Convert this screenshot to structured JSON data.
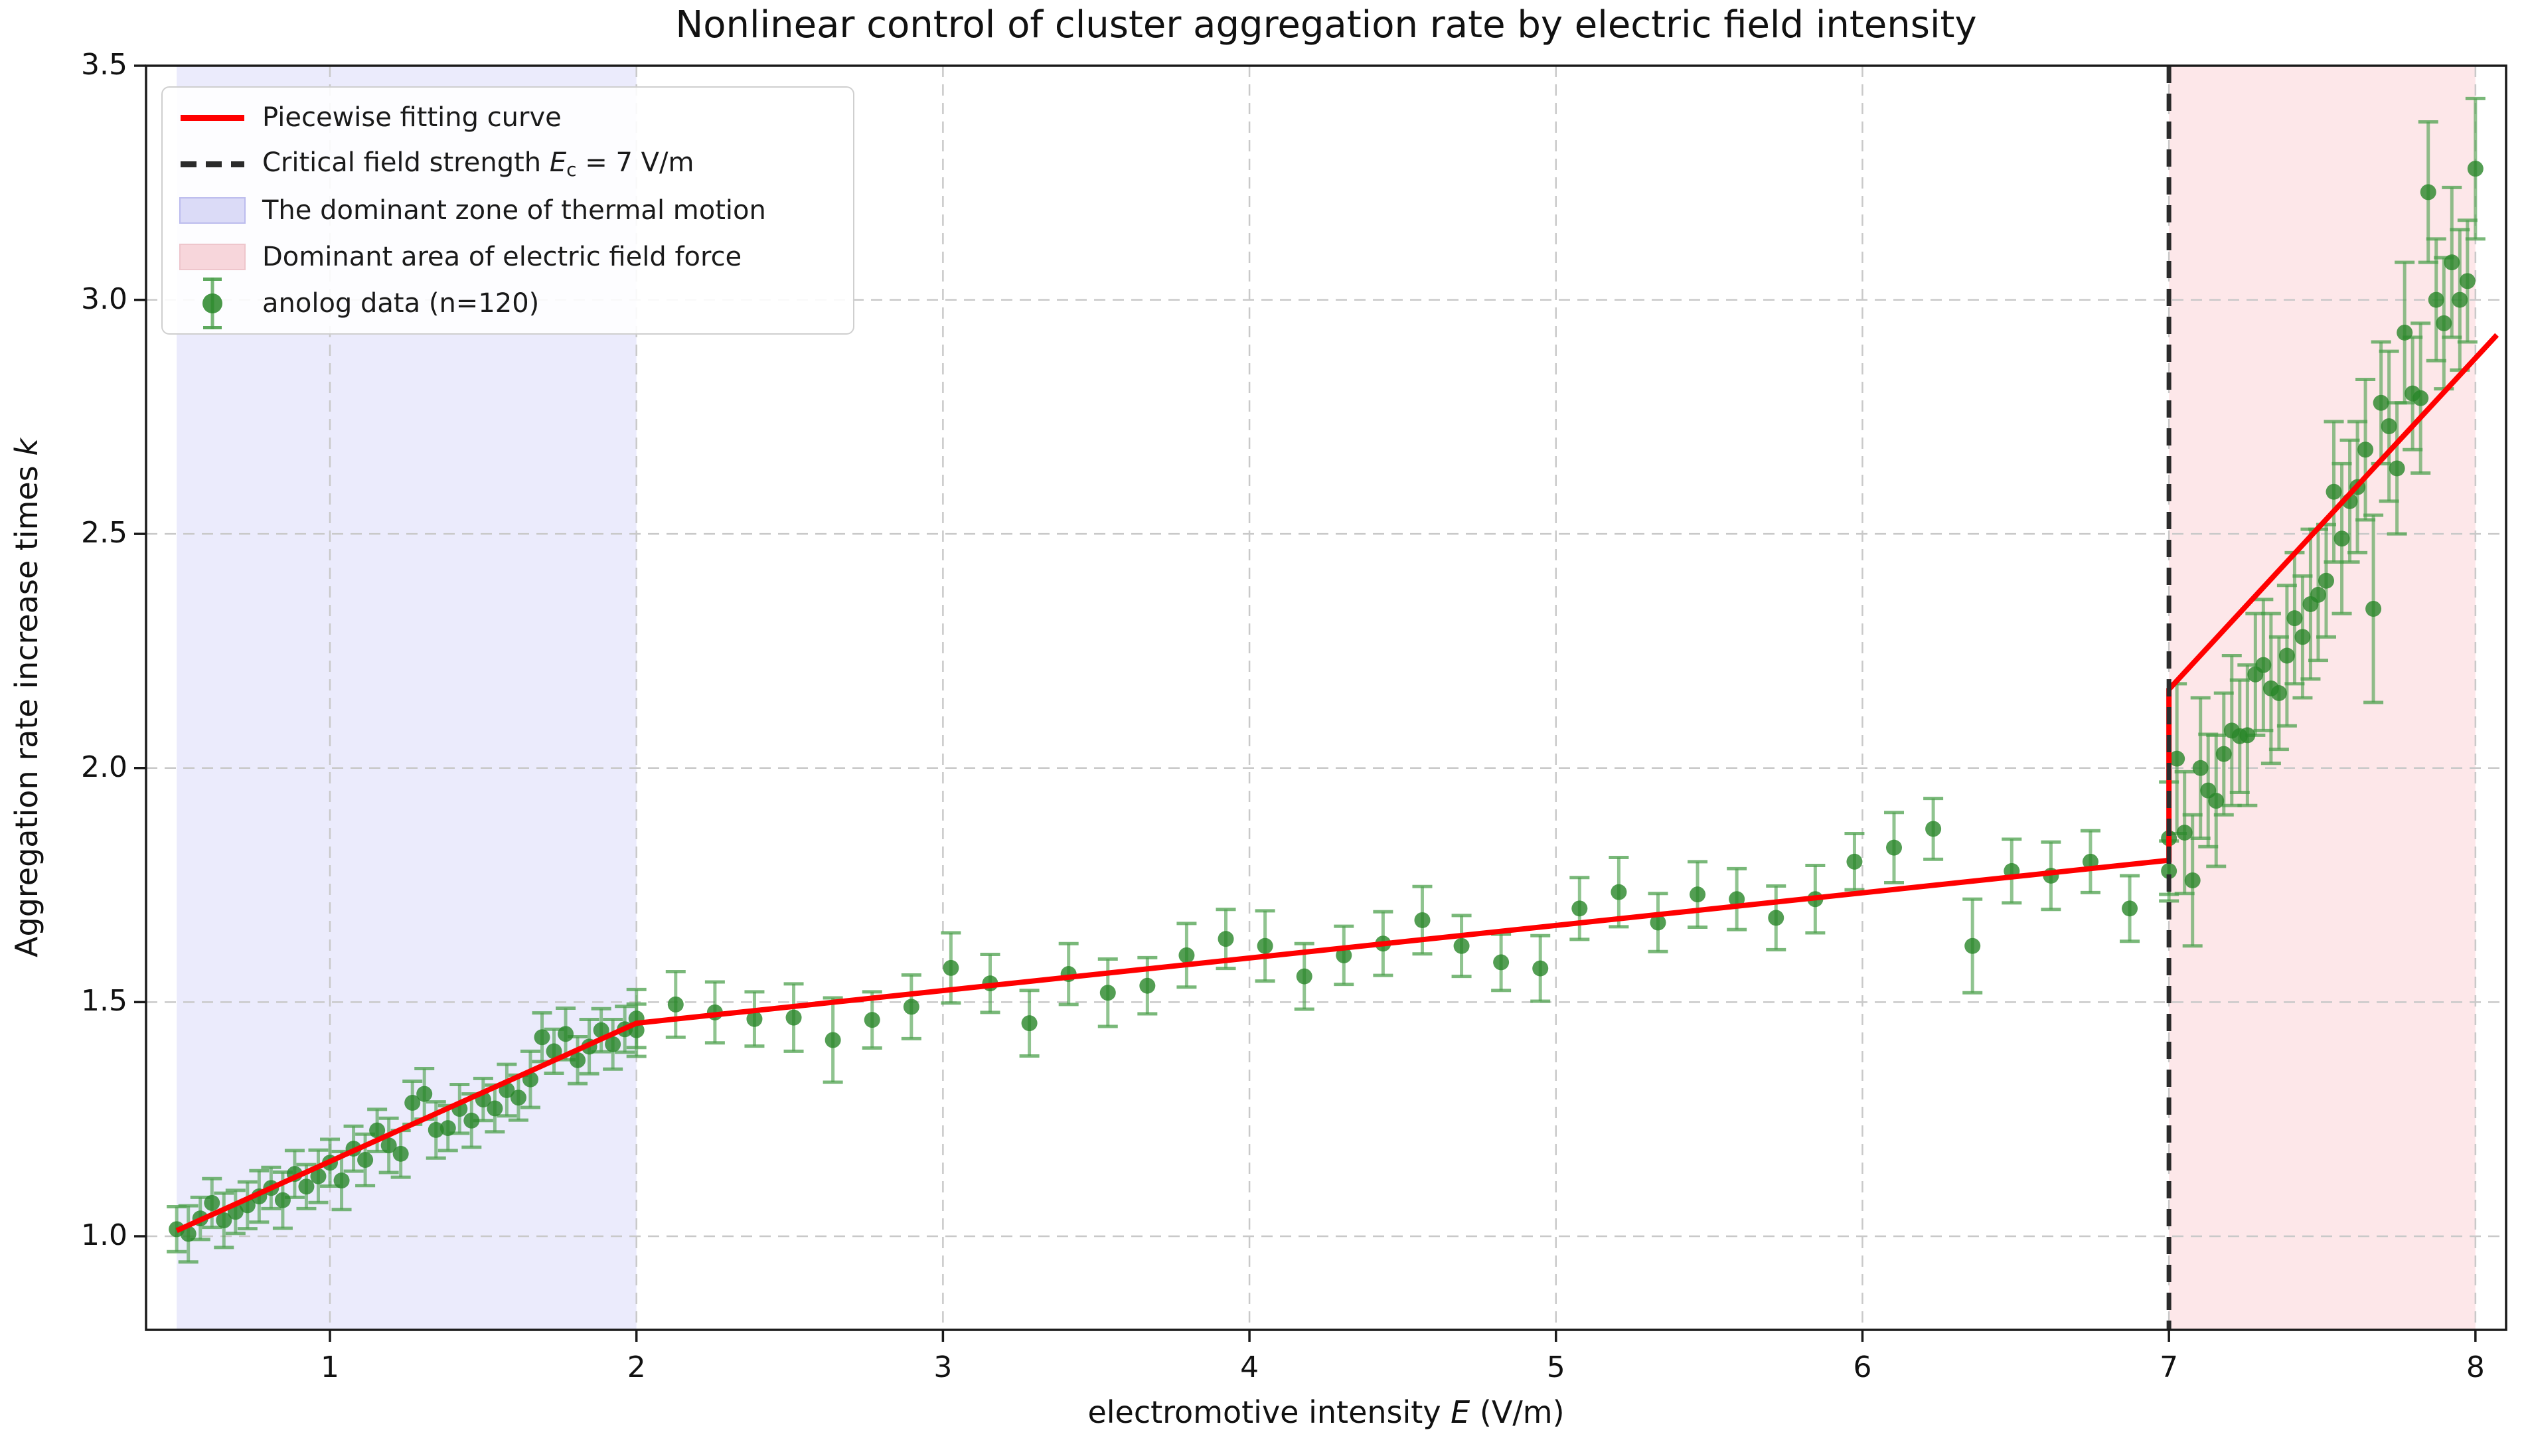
{
  "figure": {
    "title": "Nonlinear control of cluster aggregation rate by electric field intensity"
  },
  "axes": {
    "xlabel": {
      "pre": "electromotive intensity ",
      "var": "E",
      "post": " (V/m)"
    },
    "ylabel": {
      "pre": "Aggregation rate increase times ",
      "var": "k"
    },
    "x_tick_labels": [
      "1",
      "2",
      "3",
      "4",
      "5",
      "6",
      "7",
      "8"
    ],
    "y_tick_labels": [
      "1.0",
      "1.5",
      "2.0",
      "2.5",
      "3.0",
      "3.5"
    ]
  },
  "legend": {
    "fit": {
      "label": "Piecewise fitting curve"
    },
    "critical": {
      "pre": "Critical field strength ",
      "var": "E",
      "sub": "c",
      "post": " = 7 V/m"
    },
    "thermal": {
      "label": "The dominant zone of thermal motion"
    },
    "field": {
      "label": "Dominant area of electric field force"
    },
    "data": {
      "label": "anolog data (n=120)"
    }
  },
  "colors": {
    "fit_line": "#ff0000",
    "critical_line": "#2b2b2b",
    "thermal_zone": "#6464e6",
    "field_zone": "#eb3c4b",
    "marker": "#288628",
    "error_bar": "#4ca04c",
    "grid": "#c9c9c9",
    "spine": "#1a1a1a"
  },
  "chart_data": {
    "type": "scatter",
    "title": "Nonlinear control of cluster aggregation rate by electric field intensity",
    "xlabel": "electromotive intensity E (V/m)",
    "ylabel": "Aggregation rate increase times k",
    "xlim": [
      0.4,
      8.1
    ],
    "ylim": [
      0.8,
      3.5
    ],
    "x_ticks": [
      1,
      2,
      3,
      4,
      5,
      6,
      7,
      8
    ],
    "y_ticks": [
      1.0,
      1.5,
      2.0,
      2.5,
      3.0,
      3.5
    ],
    "grid": true,
    "legend_position": "upper-left",
    "regions": [
      {
        "label": "The dominant zone of thermal motion",
        "x_start": 0.5,
        "x_end": 2.0,
        "color": "#6464e6",
        "opacity": 0.13
      },
      {
        "label": "Dominant area of electric field force",
        "x_start": 7.0,
        "x_end": 8.0,
        "color": "#eb3c4b",
        "opacity": 0.12
      }
    ],
    "critical_line": {
      "x": 7,
      "label": "Critical field strength Ec = 7 V/m"
    },
    "fit_line": {
      "label": "Piecewise fitting curve",
      "color": "#ff0000",
      "points": [
        [
          0.5,
          1.012
        ],
        [
          2.0,
          1.455
        ],
        [
          7.0,
          1.803
        ],
        [
          7.0,
          2.168
        ],
        [
          8.07,
          2.925
        ]
      ]
    },
    "scatter": {
      "label": "anolog data (n=120)",
      "n": 120,
      "x": [
        0.5,
        0.538,
        0.577,
        0.615,
        0.654,
        0.692,
        0.731,
        0.769,
        0.808,
        0.846,
        0.885,
        0.923,
        0.962,
        1.0,
        1.038,
        1.077,
        1.115,
        1.154,
        1.192,
        1.231,
        1.269,
        1.308,
        1.346,
        1.385,
        1.423,
        1.462,
        1.5,
        1.538,
        1.577,
        1.615,
        1.654,
        1.692,
        1.731,
        1.769,
        1.808,
        1.846,
        1.885,
        1.923,
        1.962,
        2.0,
        2.0,
        2.128,
        2.256,
        2.385,
        2.513,
        2.641,
        2.769,
        2.897,
        3.026,
        3.154,
        3.282,
        3.41,
        3.538,
        3.667,
        3.795,
        3.923,
        4.051,
        4.179,
        4.308,
        4.436,
        4.564,
        4.692,
        4.821,
        4.949,
        5.077,
        5.205,
        5.333,
        5.462,
        5.59,
        5.718,
        5.846,
        5.974,
        6.103,
        6.231,
        6.359,
        6.487,
        6.615,
        6.744,
        6.872,
        7.0,
        7.0,
        7.026,
        7.051,
        7.077,
        7.103,
        7.128,
        7.154,
        7.179,
        7.205,
        7.231,
        7.256,
        7.282,
        7.308,
        7.333,
        7.359,
        7.385,
        7.41,
        7.436,
        7.462,
        7.487,
        7.513,
        7.538,
        7.564,
        7.59,
        7.615,
        7.641,
        7.667,
        7.692,
        7.718,
        7.744,
        7.769,
        7.795,
        7.821,
        7.846,
        7.872,
        7.897,
        7.923,
        7.949,
        7.974,
        8.0
      ],
      "y": [
        1.015,
        1.005,
        1.038,
        1.071,
        1.034,
        1.052,
        1.066,
        1.085,
        1.103,
        1.077,
        1.133,
        1.106,
        1.128,
        1.157,
        1.119,
        1.187,
        1.163,
        1.226,
        1.194,
        1.176,
        1.285,
        1.304,
        1.227,
        1.231,
        1.272,
        1.247,
        1.292,
        1.273,
        1.312,
        1.296,
        1.335,
        1.425,
        1.395,
        1.432,
        1.376,
        1.405,
        1.44,
        1.41,
        1.442,
        1.44,
        1.465,
        1.495,
        1.478,
        1.464,
        1.467,
        1.419,
        1.462,
        1.49,
        1.573,
        1.54,
        1.455,
        1.56,
        1.52,
        1.535,
        1.6,
        1.635,
        1.62,
        1.555,
        1.6,
        1.625,
        1.675,
        1.62,
        1.585,
        1.572,
        1.7,
        1.735,
        1.67,
        1.73,
        1.72,
        1.68,
        1.72,
        1.8,
        1.83,
        1.87,
        1.62,
        1.78,
        1.77,
        1.8,
        1.7,
        1.78,
        1.85,
        2.02,
        1.862,
        1.76,
        2.0,
        1.952,
        1.93,
        2.03,
        2.08,
        2.068,
        2.07,
        2.2,
        2.22,
        2.17,
        2.16,
        2.24,
        2.32,
        2.28,
        2.35,
        2.37,
        2.4,
        2.59,
        2.49,
        2.57,
        2.6,
        2.68,
        2.34,
        2.78,
        2.73,
        2.64,
        2.93,
        2.8,
        2.79,
        3.23,
        3.0,
        2.95,
        3.08,
        3.0,
        3.04,
        3.28
      ],
      "yerr": [
        0.048,
        0.06,
        0.045,
        0.052,
        0.058,
        0.046,
        0.05,
        0.055,
        0.044,
        0.06,
        0.05,
        0.047,
        0.056,
        0.05,
        0.062,
        0.048,
        0.055,
        0.045,
        0.058,
        0.05,
        0.046,
        0.054,
        0.06,
        0.048,
        0.052,
        0.057,
        0.045,
        0.05,
        0.055,
        0.048,
        0.06,
        0.052,
        0.047,
        0.055,
        0.05,
        0.058,
        0.046,
        0.053,
        0.049,
        0.056,
        0.062,
        0.07,
        0.065,
        0.058,
        0.072,
        0.09,
        0.06,
        0.068,
        0.075,
        0.062,
        0.07,
        0.065,
        0.072,
        0.06,
        0.068,
        0.063,
        0.075,
        0.07,
        0.062,
        0.068,
        0.072,
        0.065,
        0.06,
        0.07,
        0.066,
        0.074,
        0.062,
        0.07,
        0.065,
        0.068,
        0.072,
        0.06,
        0.075,
        0.065,
        0.1,
        0.068,
        0.072,
        0.066,
        0.07,
        0.064,
        0.12,
        0.16,
        0.13,
        0.14,
        0.15,
        0.12,
        0.14,
        0.13,
        0.16,
        0.12,
        0.15,
        0.13,
        0.14,
        0.16,
        0.12,
        0.15,
        0.14,
        0.13,
        0.16,
        0.14,
        0.12,
        0.15,
        0.16,
        0.13,
        0.14,
        0.15,
        0.2,
        0.13,
        0.16,
        0.14,
        0.15,
        0.12,
        0.16,
        0.15,
        0.13,
        0.14,
        0.16,
        0.15,
        0.13,
        0.15
      ]
    }
  }
}
